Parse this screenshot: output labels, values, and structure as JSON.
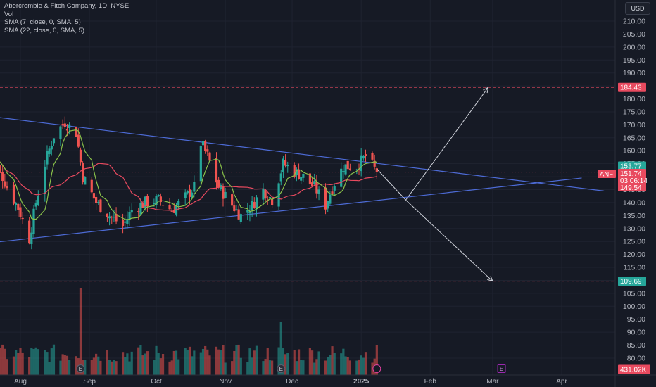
{
  "legend": {
    "title": "Abercrombie & Fitch Company, 1D, NYSE",
    "vol": "Vol",
    "sma7": "SMA (7, close, 0, SMA, 5)",
    "sma22": "SMA (22, close, 0, SMA, 5)"
  },
  "currency": "USD",
  "colors": {
    "background": "#161a25",
    "up": "#26a69a",
    "down": "#ef5350",
    "sma7": "#8bc34a",
    "sma22": "#e84a5f",
    "trendline": "#4d6bd6",
    "projection": "#d1d4dc",
    "dashed": "#e84a5f"
  },
  "chart_data": {
    "type": "candlestick",
    "symbol": "ANF",
    "ylim": [
      76,
      216
    ],
    "y_ticks": [
      80,
      85,
      90,
      95,
      100,
      105,
      110,
      115,
      120,
      125,
      130,
      135,
      140,
      145,
      150,
      155,
      160,
      165,
      170,
      175,
      180,
      185,
      190,
      195,
      200,
      205,
      210
    ],
    "x_labels": [
      {
        "label": "Aug",
        "date": "2024-08-01"
      },
      {
        "label": "Sep",
        "date": "2024-09-01"
      },
      {
        "label": "Oct",
        "date": "2024-10-01"
      },
      {
        "label": "Nov",
        "date": "2024-11-01"
      },
      {
        "label": "Dec",
        "date": "2024-12-01"
      },
      {
        "label": "2025",
        "date": "2025-01-01"
      },
      {
        "label": "Feb",
        "date": "2025-02-01"
      },
      {
        "label": "Mar",
        "date": "2025-03-01"
      },
      {
        "label": "Apr",
        "date": "2025-04-01"
      }
    ],
    "close_anchors": [
      {
        "date": "2024-07-17",
        "value": 158
      },
      {
        "date": "2024-07-23",
        "value": 152
      },
      {
        "date": "2024-07-26",
        "value": 146
      },
      {
        "date": "2024-07-31",
        "value": 138
      },
      {
        "date": "2024-08-05",
        "value": 126
      },
      {
        "date": "2024-08-08",
        "value": 140
      },
      {
        "date": "2024-08-12",
        "value": 155
      },
      {
        "date": "2024-08-16",
        "value": 166
      },
      {
        "date": "2024-08-21",
        "value": 171
      },
      {
        "date": "2024-08-26",
        "value": 167
      },
      {
        "date": "2024-08-29",
        "value": 150
      },
      {
        "date": "2024-09-04",
        "value": 140
      },
      {
        "date": "2024-09-10",
        "value": 135
      },
      {
        "date": "2024-09-16",
        "value": 131
      },
      {
        "date": "2024-09-20",
        "value": 137
      },
      {
        "date": "2024-09-26",
        "value": 140
      },
      {
        "date": "2024-10-02",
        "value": 141
      },
      {
        "date": "2024-10-08",
        "value": 137
      },
      {
        "date": "2024-10-14",
        "value": 142
      },
      {
        "date": "2024-10-18",
        "value": 146
      },
      {
        "date": "2024-10-21",
        "value": 163
      },
      {
        "date": "2024-10-24",
        "value": 158
      },
      {
        "date": "2024-10-29",
        "value": 146
      },
      {
        "date": "2024-11-04",
        "value": 139
      },
      {
        "date": "2024-11-08",
        "value": 135
      },
      {
        "date": "2024-11-13",
        "value": 139
      },
      {
        "date": "2024-11-18",
        "value": 145
      },
      {
        "date": "2024-11-22",
        "value": 141
      },
      {
        "date": "2024-11-27",
        "value": 155
      },
      {
        "date": "2024-12-02",
        "value": 152
      },
      {
        "date": "2024-12-06",
        "value": 150
      },
      {
        "date": "2024-12-11",
        "value": 146
      },
      {
        "date": "2024-12-16",
        "value": 139
      },
      {
        "date": "2024-12-19",
        "value": 146
      },
      {
        "date": "2024-12-24",
        "value": 154
      },
      {
        "date": "2024-12-30",
        "value": 154
      },
      {
        "date": "2025-01-03",
        "value": 158
      },
      {
        "date": "2025-01-08",
        "value": 151.74
      }
    ],
    "volume_spikes": [
      {
        "date": "2024-08-28",
        "value": 8.5
      },
      {
        "date": "2024-11-26",
        "value": 5.2
      }
    ],
    "trendlines": [
      {
        "name": "upper",
        "from": {
          "date": "2024-06-22",
          "value": 176
        },
        "to": {
          "date": "2025-04-20",
          "value": 144.5
        }
      },
      {
        "name": "lower",
        "from": {
          "date": "2024-06-22",
          "value": 122
        },
        "to": {
          "date": "2025-04-10",
          "value": 149.5
        }
      }
    ],
    "projections": [
      {
        "from": {
          "date": "2025-01-08",
          "value": 153
        },
        "via": {
          "date": "2025-01-21",
          "value": 141
        },
        "to": {
          "date": "2025-02-27",
          "value": 184.43
        }
      },
      {
        "from": {
          "date": "2025-01-21",
          "value": 141
        },
        "to": {
          "date": "2025-03-01",
          "value": 109.69
        }
      }
    ],
    "levels": [
      {
        "value": 184.43,
        "label": "184.43"
      },
      {
        "value": 109.69,
        "label": "109.69"
      }
    ],
    "price_tags": {
      "high": "153.77",
      "last_symbol": "ANF",
      "last": "151.74",
      "countdown": "03:06:14",
      "low": "149.54",
      "volume": "431.02K"
    },
    "events": [
      {
        "date": "2024-08-28",
        "label": "E"
      },
      {
        "date": "2024-11-26",
        "label": "E"
      },
      {
        "date": "2025-03-05",
        "label": "E"
      }
    ]
  }
}
